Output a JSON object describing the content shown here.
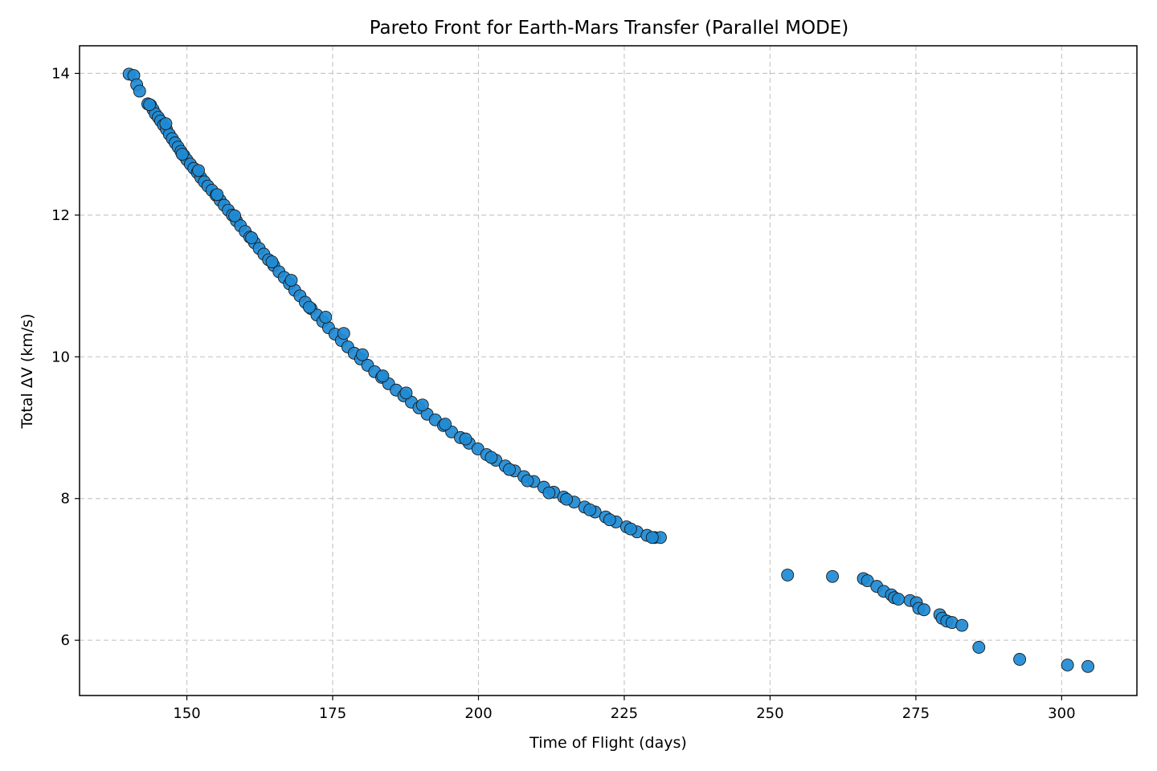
{
  "chart_data": {
    "type": "scatter",
    "title": "Pareto Front for Earth-Mars Transfer (Parallel MODE)",
    "xlabel": "Time of Flight (days)",
    "ylabel": "Total ΔV (km/s)",
    "xlim": [
      131.6,
      312.9
    ],
    "ylim": [
      5.22,
      14.39
    ],
    "xticks": [
      150,
      175,
      200,
      225,
      250,
      275,
      300
    ],
    "yticks": [
      6,
      8,
      10,
      12,
      14
    ],
    "xtick_labels": [
      "150",
      "175",
      "200",
      "225",
      "250",
      "275",
      "300"
    ],
    "ytick_labels": [
      "6",
      "8",
      "10",
      "12",
      "14"
    ],
    "grid": true,
    "legend": "none",
    "marker_color": "#1f8ad4",
    "marker_edge_color": "#1a1a1a",
    "series": [
      {
        "points": [
          [
            140.1,
            13.99
          ],
          [
            140.9,
            13.97
          ],
          [
            141.4,
            13.84
          ],
          [
            141.9,
            13.75
          ],
          [
            143.3,
            13.57
          ],
          [
            143.8,
            13.55
          ],
          [
            144.2,
            13.49
          ],
          [
            144.6,
            13.43
          ],
          [
            145.1,
            13.38
          ],
          [
            145.5,
            13.33
          ],
          [
            146.0,
            13.27
          ],
          [
            146.5,
            13.21
          ],
          [
            147.0,
            13.14
          ],
          [
            147.5,
            13.08
          ],
          [
            148.0,
            13.02
          ],
          [
            148.5,
            12.96
          ],
          [
            149.0,
            12.9
          ],
          [
            149.5,
            12.84
          ],
          [
            150.0,
            12.78
          ],
          [
            150.6,
            12.72
          ],
          [
            151.2,
            12.66
          ],
          [
            151.8,
            12.6
          ],
          [
            152.4,
            12.53
          ],
          [
            153.0,
            12.47
          ],
          [
            153.6,
            12.41
          ],
          [
            154.3,
            12.35
          ],
          [
            155.0,
            12.28
          ],
          [
            155.7,
            12.21
          ],
          [
            156.4,
            12.14
          ],
          [
            157.1,
            12.07
          ],
          [
            157.8,
            12.0
          ],
          [
            158.5,
            11.92
          ],
          [
            159.2,
            11.85
          ],
          [
            160.0,
            11.77
          ],
          [
            160.8,
            11.69
          ],
          [
            161.6,
            11.61
          ],
          [
            162.4,
            11.53
          ],
          [
            163.2,
            11.45
          ],
          [
            164.0,
            11.37
          ],
          [
            164.9,
            11.29
          ],
          [
            165.8,
            11.2
          ],
          [
            166.7,
            11.12
          ],
          [
            167.6,
            11.03
          ],
          [
            168.5,
            10.94
          ],
          [
            169.4,
            10.86
          ],
          [
            170.3,
            10.77
          ],
          [
            171.3,
            10.68
          ],
          [
            172.3,
            10.59
          ],
          [
            173.3,
            10.5
          ],
          [
            174.3,
            10.41
          ],
          [
            175.4,
            10.32
          ],
          [
            176.5,
            10.23
          ],
          [
            177.6,
            10.14
          ],
          [
            178.7,
            10.05
          ],
          [
            179.8,
            9.97
          ],
          [
            181.0,
            9.88
          ],
          [
            182.2,
            9.79
          ],
          [
            183.4,
            9.71
          ],
          [
            184.6,
            9.62
          ],
          [
            185.9,
            9.53
          ],
          [
            187.2,
            9.45
          ],
          [
            188.5,
            9.36
          ],
          [
            189.8,
            9.28
          ],
          [
            191.2,
            9.19
          ],
          [
            192.6,
            9.11
          ],
          [
            194.0,
            9.03
          ],
          [
            195.4,
            8.94
          ],
          [
            196.9,
            8.86
          ],
          [
            198.4,
            8.78
          ],
          [
            199.9,
            8.7
          ],
          [
            201.4,
            8.62
          ],
          [
            203.0,
            8.54
          ],
          [
            204.6,
            8.46
          ],
          [
            206.2,
            8.39
          ],
          [
            207.8,
            8.31
          ],
          [
            209.5,
            8.24
          ],
          [
            211.2,
            8.16
          ],
          [
            212.9,
            8.09
          ],
          [
            214.6,
            8.02
          ],
          [
            216.4,
            7.95
          ],
          [
            218.2,
            7.88
          ],
          [
            220.0,
            7.81
          ],
          [
            221.8,
            7.74
          ],
          [
            223.6,
            7.67
          ],
          [
            225.4,
            7.6
          ],
          [
            227.2,
            7.53
          ],
          [
            228.9,
            7.48
          ],
          [
            230.2,
            7.45
          ],
          [
            231.2,
            7.45
          ],
          [
            143.6,
            13.56
          ],
          [
            146.4,
            13.29
          ],
          [
            149.2,
            12.86
          ],
          [
            152.0,
            12.63
          ],
          [
            155.2,
            12.29
          ],
          [
            158.2,
            11.99
          ],
          [
            161.1,
            11.68
          ],
          [
            164.6,
            11.34
          ],
          [
            167.9,
            11.08
          ],
          [
            171.0,
            10.7
          ],
          [
            173.8,
            10.56
          ],
          [
            176.9,
            10.33
          ],
          [
            180.1,
            10.03
          ],
          [
            183.6,
            9.73
          ],
          [
            187.6,
            9.49
          ],
          [
            190.4,
            9.32
          ],
          [
            194.3,
            9.05
          ],
          [
            197.8,
            8.84
          ],
          [
            202.2,
            8.58
          ],
          [
            205.3,
            8.41
          ],
          [
            208.4,
            8.25
          ],
          [
            212.1,
            8.08
          ],
          [
            215.1,
            7.99
          ],
          [
            219.1,
            7.84
          ],
          [
            222.5,
            7.7
          ],
          [
            226.1,
            7.57
          ],
          [
            229.8,
            7.45
          ],
          [
            253.0,
            6.92
          ],
          [
            260.7,
            6.9
          ],
          [
            266.0,
            6.87
          ],
          [
            266.7,
            6.84
          ],
          [
            268.3,
            6.76
          ],
          [
            269.5,
            6.69
          ],
          [
            270.8,
            6.64
          ],
          [
            271.3,
            6.6
          ],
          [
            272.0,
            6.58
          ],
          [
            274.0,
            6.56
          ],
          [
            275.1,
            6.53
          ],
          [
            275.5,
            6.45
          ],
          [
            276.4,
            6.43
          ],
          [
            279.1,
            6.36
          ],
          [
            279.5,
            6.31
          ],
          [
            280.3,
            6.27
          ],
          [
            281.2,
            6.25
          ],
          [
            282.9,
            6.21
          ],
          [
            285.8,
            5.9
          ],
          [
            292.8,
            5.73
          ],
          [
            301.0,
            5.65
          ],
          [
            304.5,
            5.63
          ]
        ]
      }
    ]
  }
}
